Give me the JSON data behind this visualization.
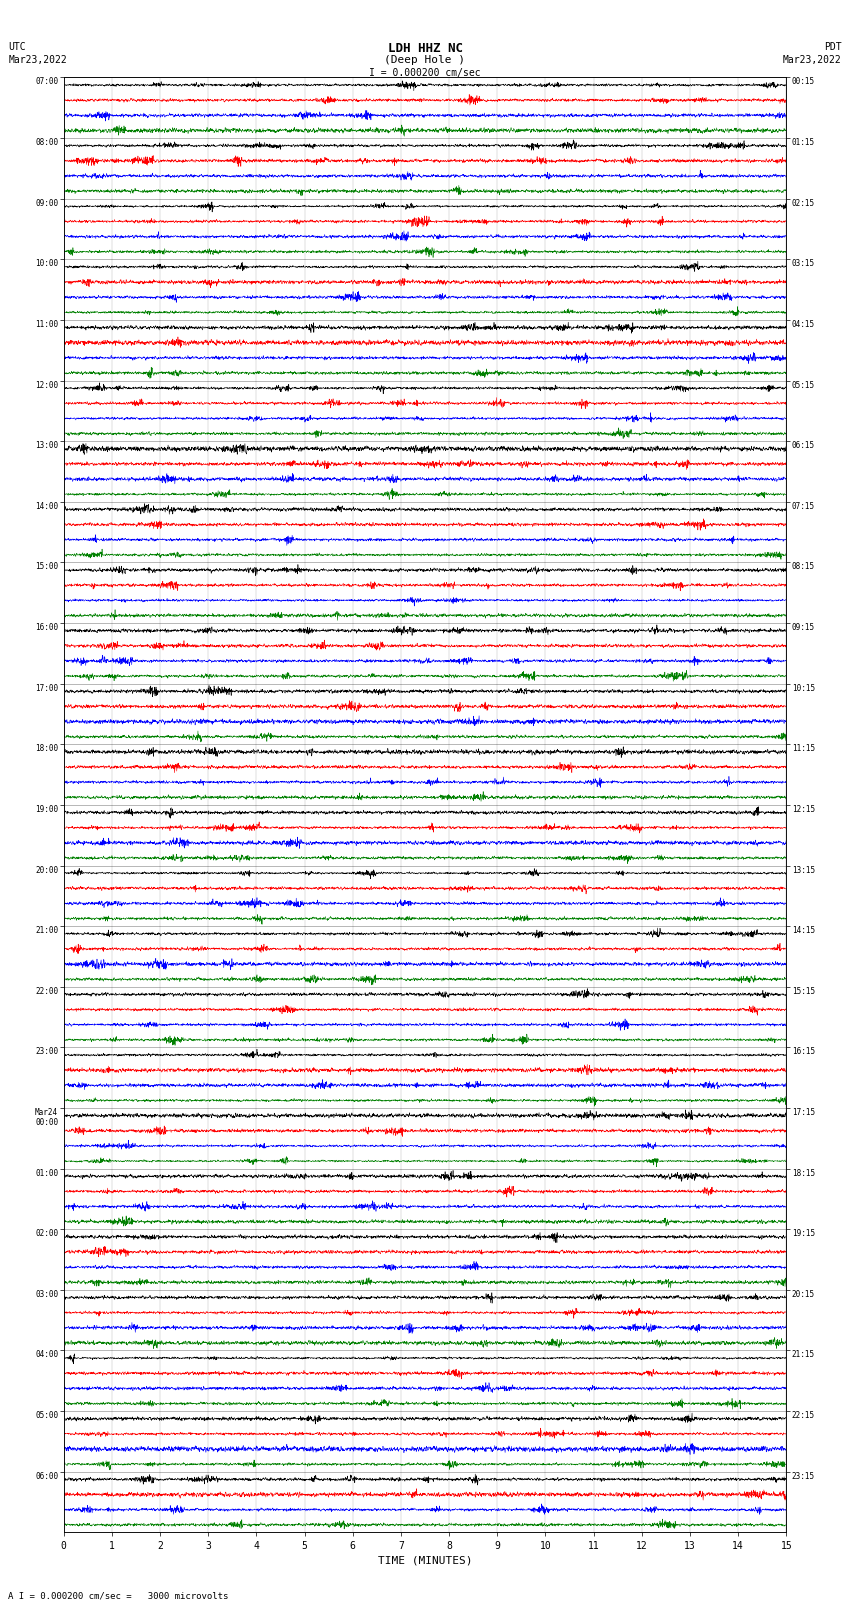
{
  "title_line1": "LDH HHZ NC",
  "title_line2": "(Deep Hole )",
  "scale_label": "I = 0.000200 cm/sec",
  "bottom_label": "A I = 0.000200 cm/sec =   3000 microvolts",
  "xlabel": "TIME (MINUTES)",
  "left_header_line1": "UTC",
  "left_header_line2": "Mar23,2022",
  "right_header_line1": "PDT",
  "right_header_line2": "Mar23,2022",
  "num_hours": 24,
  "traces_per_hour": 4,
  "colors": [
    "black",
    "red",
    "blue",
    "green"
  ],
  "fig_width": 8.5,
  "fig_height": 16.13,
  "bg_color": "white",
  "x_ticks": [
    0,
    1,
    2,
    3,
    4,
    5,
    6,
    7,
    8,
    9,
    10,
    11,
    12,
    13,
    14,
    15
  ],
  "left_times_utc": [
    "07:00",
    "08:00",
    "09:00",
    "10:00",
    "11:00",
    "12:00",
    "13:00",
    "14:00",
    "15:00",
    "16:00",
    "17:00",
    "18:00",
    "19:00",
    "20:00",
    "21:00",
    "22:00",
    "23:00",
    "Mar24\n00:00",
    "01:00",
    "02:00",
    "03:00",
    "04:00",
    "05:00",
    "06:00"
  ],
  "right_times_pdt": [
    "00:15",
    "01:15",
    "02:15",
    "03:15",
    "04:15",
    "05:15",
    "06:15",
    "07:15",
    "08:15",
    "09:15",
    "10:15",
    "11:15",
    "12:15",
    "13:15",
    "14:15",
    "15:15",
    "16:15",
    "17:15",
    "18:15",
    "19:15",
    "20:15",
    "21:15",
    "22:15",
    "23:15"
  ],
  "seed": 42
}
